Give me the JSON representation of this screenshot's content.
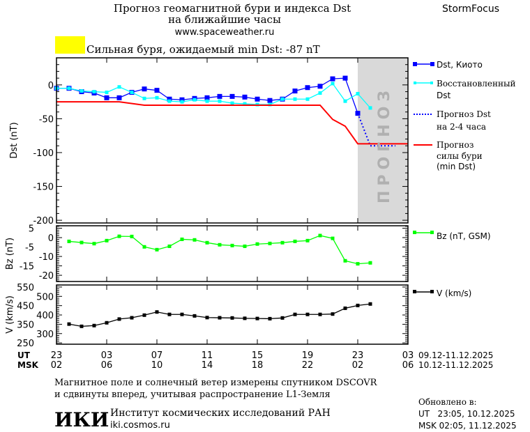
{
  "header": {
    "title_line1": "Прогноз геомагнитной бури и индекса Dst",
    "title_line2": "на ближайшие часы",
    "website": "www.spaceweather.ru",
    "brand": "StormFocus",
    "storm_status": "Сильная буря, ожидаемый min Dst: -87 nT",
    "storm_color": "#ffff00"
  },
  "forecast_zone_label": "ПРОГНОЗ",
  "legend": {
    "dst": "Dst, Киото",
    "recon_1": "Восстановленный",
    "recon_2": "Dst",
    "forecast_1": "Прогноз Dst",
    "forecast_2": "на 2-4 часа",
    "storm_1": "Прогноз",
    "storm_2": "силы бури",
    "storm_3": "(min Dst)",
    "bz": "Bz (nT, GSM)",
    "v": "V (km/s)"
  },
  "axes": {
    "ut_label": "UT",
    "msk_label": "MSK",
    "ut_ticks": [
      "23",
      "03",
      "07",
      "11",
      "15",
      "19",
      "23",
      "03"
    ],
    "msk_ticks": [
      "02",
      "06",
      "10",
      "14",
      "18",
      "22",
      "02",
      "06"
    ],
    "ut_range": "09.12-11.12.2025",
    "msk_range": "10.12-11.12.2025"
  },
  "footer": {
    "note_1": "Магнитное поле и солнечный ветер измерены спутником DSCOVR",
    "note_2": "и сдвинуты вперед, учитывая распространение L1-Земля",
    "logo": "ИКИ",
    "institute": "Институт космических исследований РАН",
    "institute_site": "iki.cosmos.ru",
    "updated_label": "Обновлено в:",
    "updated_ut": "UT   23:05, 10.12.2025",
    "updated_msk": "MSK 02:05, 11.12.2025"
  },
  "chart_data": [
    {
      "type": "line",
      "ylabel": "Dst (nT)",
      "ylim": [
        -204,
        40
      ],
      "yticks": [
        0,
        -50,
        -100,
        -150,
        -200
      ],
      "xlim_hours": [
        0,
        28
      ],
      "forecast_zone_hours": [
        24,
        28
      ],
      "series": [
        {
          "name": "Dst, Киото",
          "color": "#0000ff",
          "x": [
            0,
            1,
            2,
            3,
            4,
            5,
            6,
            7,
            8,
            9,
            10,
            11,
            12,
            13,
            14,
            15,
            16,
            17,
            18,
            19,
            20,
            21,
            22,
            23,
            24
          ],
          "values": [
            -5,
            -5,
            -10,
            -12,
            -19,
            -19,
            -11,
            -6,
            -8,
            -21,
            -22,
            -20,
            -19,
            -17,
            -17,
            -18,
            -21,
            -23,
            -21,
            -9,
            -4,
            -2,
            9,
            10,
            -42
          ]
        },
        {
          "name": "Восстановленный Dst",
          "color": "#00ffff",
          "x": [
            0,
            1,
            2,
            3,
            4,
            5,
            6,
            7,
            8,
            9,
            10,
            11,
            12,
            13,
            14,
            15,
            16,
            17,
            18,
            19,
            20,
            21,
            22,
            23,
            24,
            25
          ],
          "values": [
            -5,
            -5,
            -9,
            -10,
            -11,
            -3,
            -11,
            -20,
            -19,
            -24,
            -25,
            -22,
            -24,
            -24,
            -27,
            -28,
            -29,
            -29,
            -21,
            -21,
            -21,
            -12,
            2,
            -24,
            -13,
            -34
          ]
        },
        {
          "name": "Прогноз Dst на 2-4 часа",
          "color": "#0000ff",
          "style": "dotted",
          "x": [
            24,
            25,
            27
          ],
          "values": [
            -42,
            -90,
            -90
          ]
        },
        {
          "name": "Прогноз силы бури (min Dst)",
          "color": "#ff0000",
          "x": [
            0,
            5,
            7,
            21,
            22,
            23,
            24,
            28
          ],
          "values": [
            -25,
            -25,
            -30,
            -30,
            -51,
            -61,
            -87,
            -87
          ]
        }
      ]
    },
    {
      "type": "line",
      "ylabel": "Bz (nT)",
      "ylim": [
        -23.3,
        6.3
      ],
      "yticks": [
        5,
        0,
        -5,
        -10,
        -15,
        -20
      ],
      "series": [
        {
          "name": "Bz (nT, GSM)",
          "color": "#00ff00",
          "x": [
            1,
            2,
            3,
            4,
            5,
            6,
            7,
            8,
            9,
            10,
            11,
            12,
            13,
            14,
            15,
            16,
            17,
            18,
            19,
            20,
            21,
            22,
            23,
            24,
            25
          ],
          "values": [
            -2,
            -2.6,
            -3.2,
            -1.6,
            0.7,
            0.6,
            -4.9,
            -6.4,
            -4.6,
            -0.9,
            -1.2,
            -2.7,
            -3.8,
            -4.2,
            -4.6,
            -3.4,
            -3.1,
            -2.7,
            -2,
            -1.6,
            1.1,
            -0.4,
            -12.3,
            -13.9,
            -13.4
          ]
        }
      ]
    },
    {
      "type": "line",
      "ylabel": "V (km/s)",
      "ylim": [
        243,
        561
      ],
      "yticks": [
        550,
        500,
        450,
        400,
        350,
        300,
        250
      ],
      "series": [
        {
          "name": "V (km/s)",
          "color": "#000000",
          "x": [
            1,
            2,
            3,
            4,
            5,
            6,
            7,
            8,
            9,
            10,
            11,
            12,
            13,
            14,
            15,
            16,
            17,
            18,
            19,
            20,
            21,
            22,
            23,
            24,
            25
          ],
          "values": [
            351,
            339,
            343,
            358,
            378,
            385,
            399,
            416,
            403,
            403,
            395,
            386,
            385,
            384,
            382,
            381,
            380,
            384,
            403,
            403,
            403,
            405,
            436,
            451,
            459
          ]
        }
      ]
    }
  ]
}
